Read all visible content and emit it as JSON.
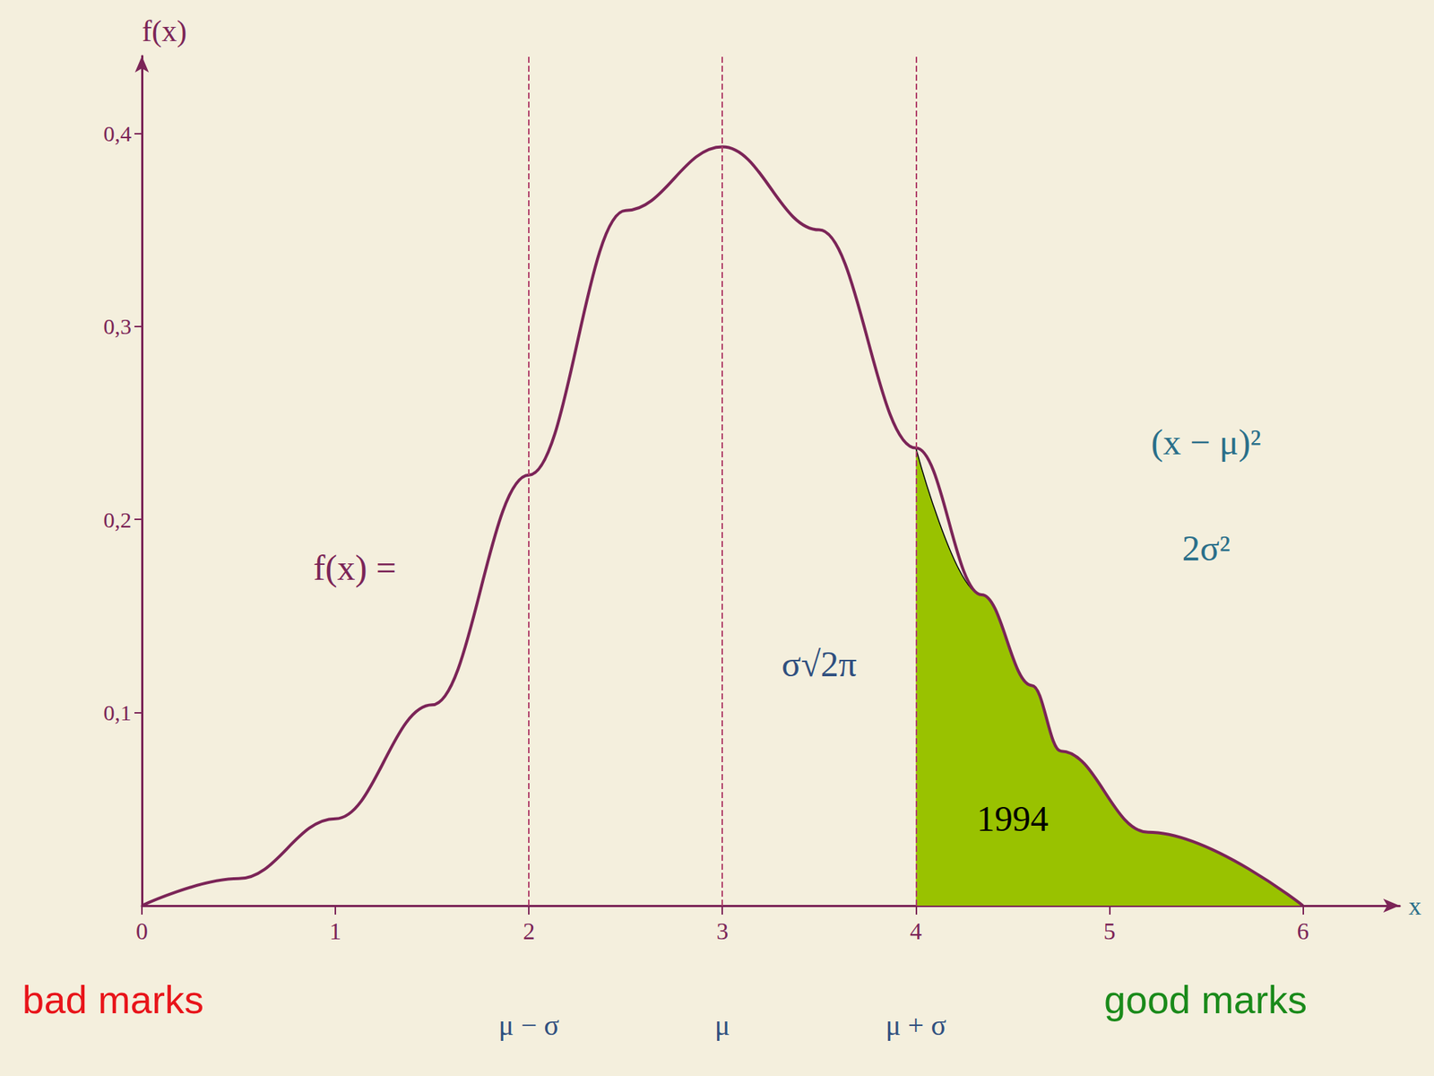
{
  "chart_data": {
    "type": "line",
    "xlim": [
      0,
      6.5
    ],
    "ylim": [
      0,
      0.44
    ],
    "xticks": [
      0,
      1,
      2,
      3,
      4,
      5,
      6
    ],
    "yticks": [
      {
        "value": 0.1,
        "label": "0,1"
      },
      {
        "value": 0.2,
        "label": "0,2"
      },
      {
        "value": 0.3,
        "label": "0,3"
      },
      {
        "value": 0.4,
        "label": "0,4"
      }
    ],
    "x_label": "x",
    "y_label": "f(x)",
    "grid": false,
    "series": [
      {
        "type": "line",
        "color": "#7b2457",
        "x": [
          0,
          0.5,
          1,
          1.5,
          2,
          2.5,
          3,
          3.5,
          4,
          4.34,
          4.6,
          4.75,
          5.2,
          6
        ],
        "values": [
          0,
          0.014,
          0.045,
          0.104,
          0.223,
          0.36,
          0.393,
          0.35,
          0.237,
          0.161,
          0.114,
          0.08,
          0.038,
          0
        ]
      },
      {
        "type": "area",
        "color": "#99c200",
        "x": [
          4,
          4.34,
          4.6,
          4.75,
          5.2,
          6
        ],
        "values": [
          0.237,
          0.161,
          0.114,
          0.08,
          0.038,
          0
        ]
      }
    ],
    "x_markers": [
      {
        "value": 2,
        "label": "μ − σ"
      },
      {
        "value": 3,
        "label": "μ"
      },
      {
        "value": 4,
        "label": "μ + σ"
      }
    ],
    "annotations": [
      {
        "text": "1994",
        "x": 4.5,
        "y": 0.045,
        "color": "#000000"
      },
      {
        "text": "f(x) =",
        "x": 1.1,
        "y": 0.175,
        "color": "#7b2457"
      },
      {
        "text": "σ√2π",
        "x": 3.5,
        "y": 0.125,
        "color": "#2f4f7f"
      },
      {
        "text": "(x − μ)²",
        "x": 5.5,
        "y": 0.24,
        "color": "#2a6f8a"
      },
      {
        "text": "2σ²",
        "x": 5.5,
        "y": 0.185,
        "color": "#2a6f8a"
      }
    ],
    "left_note": "bad marks",
    "right_note": "good marks"
  }
}
